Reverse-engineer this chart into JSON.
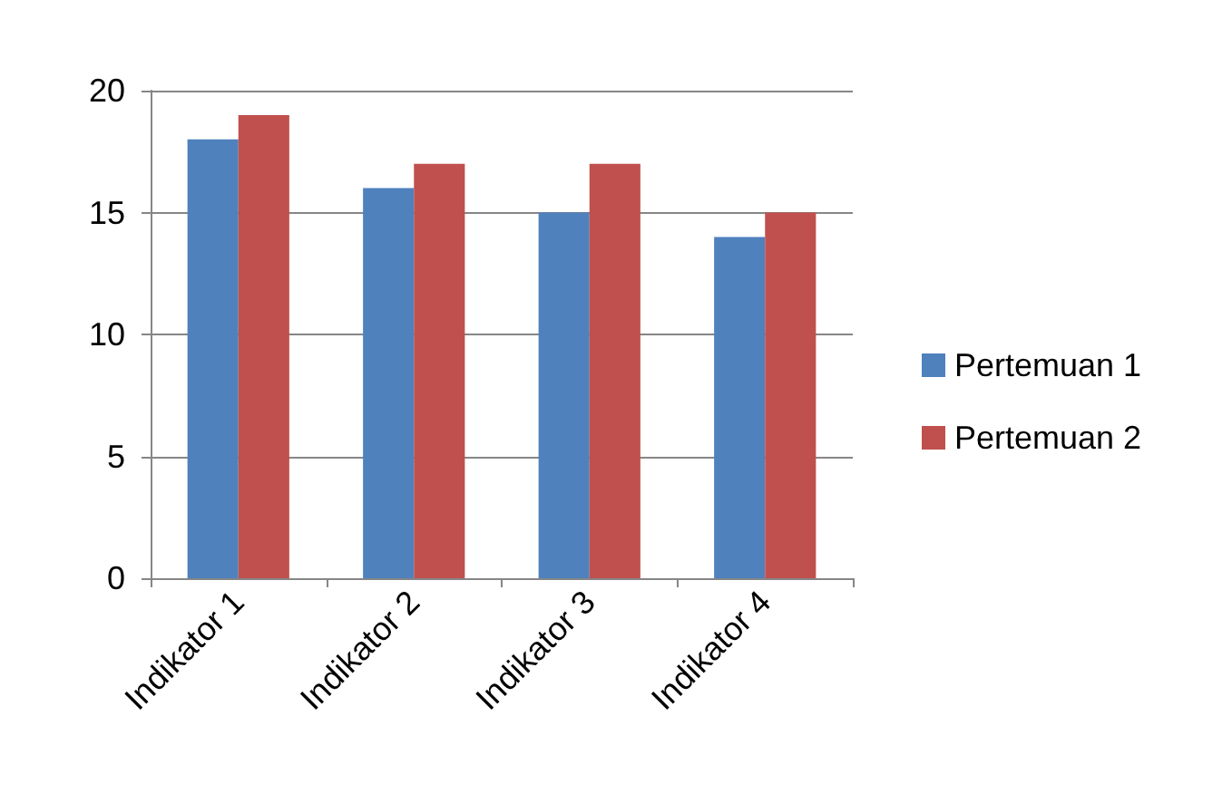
{
  "chart_data": {
    "type": "bar",
    "categories": [
      "Indikator 1",
      "Indikator 2",
      "Indikator 3",
      "Indikator 4"
    ],
    "series": [
      {
        "name": "Pertemuan 1",
        "color": "#4f81bd",
        "values": [
          18,
          16,
          15,
          14
        ]
      },
      {
        "name": "Pertemuan 2",
        "color": "#c0504d",
        "values": [
          19,
          17,
          17,
          15
        ]
      }
    ],
    "ylim": [
      0,
      20
    ],
    "yticks": [
      0,
      5,
      10,
      15,
      20
    ],
    "grid": "y",
    "legend": "right"
  }
}
